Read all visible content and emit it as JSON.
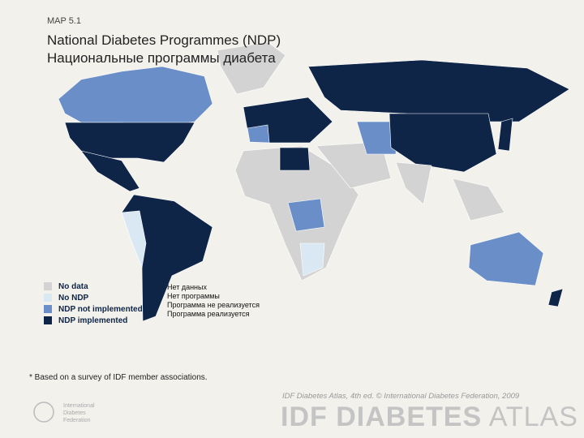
{
  "header": {
    "label": "MAP 5.1",
    "title": [
      "National Diabetes Programmes (NDP)",
      "Национальные программы диабета"
    ]
  },
  "legend": {
    "items": [
      {
        "label": "No data",
        "label_ru": "Нет данных",
        "color": "#d3d3d3"
      },
      {
        "label": "No NDP",
        "label_ru": "Нет программы",
        "color": "#d9e8f3"
      },
      {
        "label": "NDP not implemented",
        "label_ru": "Программа не реализуется",
        "color": "#6a8fc8"
      },
      {
        "label": "NDP implemented",
        "label_ru": "Программа реализуется",
        "color": "#0e2548"
      }
    ]
  },
  "footnote": "* Based on a survey of IDF member associations.",
  "credit": "IDF Diabetes Atlas, 4th ed. © International Diabetes Federation, 2009",
  "brand": {
    "atlas": [
      "IDF DIABETES",
      "ATLAS"
    ],
    "org": [
      "International",
      "Diabetes",
      "Federation"
    ]
  }
}
